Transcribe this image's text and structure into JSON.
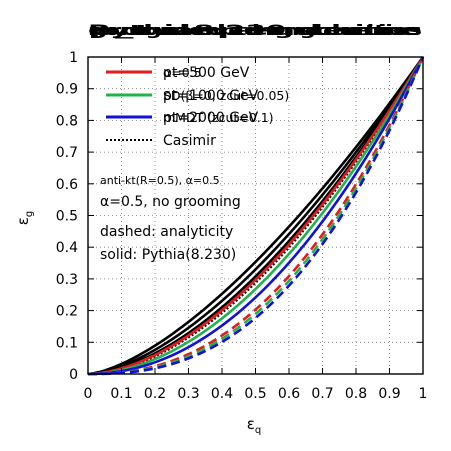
{
  "chart_data": {
    "type": "line",
    "title_layers": [
      "groomed angularities",
      "non-groomed angularities",
      "p_t dependence",
      "Pythia8.230 scheme"
    ],
    "xlabel": "ε",
    "xlabel_sub": "q",
    "ylabel": "ε",
    "ylabel_sub": "g",
    "xlim": [
      0,
      1
    ],
    "ylim": [
      0,
      1
    ],
    "xticks": [
      "0",
      "0.1",
      "0.2",
      "0.3",
      "0.4",
      "0.5",
      "0.6",
      "0.7",
      "0.8",
      "0.9",
      "1"
    ],
    "yticks": [
      "0",
      "0.1",
      "0.2",
      "0.3",
      "0.4",
      "0.5",
      "0.6",
      "0.7",
      "0.8",
      "0.9",
      "1"
    ],
    "grid": true,
    "legend_position": "top-left",
    "legend": [
      {
        "color": "#e41a1c",
        "style": "solid",
        "labels": [
          "pt=500 GeV",
          "α=0.5"
        ]
      },
      {
        "color": "#22b24c",
        "style": "solid",
        "labels": [
          "pt=1000 GeV",
          "SD(β=0, zcut=0.05)"
        ]
      },
      {
        "color": "#1010d8",
        "style": "solid",
        "labels": [
          "pt=2000 GeV",
          "mMDT (zcut=0.1)"
        ]
      },
      {
        "color": "#000000",
        "style": "dotted",
        "labels": [
          "Casimir"
        ]
      }
    ],
    "annotations": [
      "anti-kt(R=0.5), α=0.5",
      "α=0.5, no grooming",
      "dashed: analyticity",
      "solid: Pythia(8.230)"
    ],
    "series": [
      {
        "color": "#000000",
        "style": "solid",
        "exponent": 1.5
      },
      {
        "color": "#000000",
        "style": "solid",
        "exponent": 1.6
      },
      {
        "color": "#000000",
        "style": "solid",
        "exponent": 1.7
      },
      {
        "color": "#000000",
        "style": "dotted",
        "exponent": 1.8
      },
      {
        "color": "#e41a1c",
        "style": "solid",
        "exponent": 1.75
      },
      {
        "color": "#22b24c",
        "style": "solid",
        "exponent": 1.9
      },
      {
        "color": "#1010d8",
        "style": "solid",
        "exponent": 2.05
      },
      {
        "color": "#e41a1c",
        "style": "dashed",
        "exponent": 2.3
      },
      {
        "color": "#22b24c",
        "style": "dashed",
        "exponent": 2.4
      },
      {
        "color": "#1010d8",
        "style": "dashed",
        "exponent": 2.5
      }
    ]
  }
}
